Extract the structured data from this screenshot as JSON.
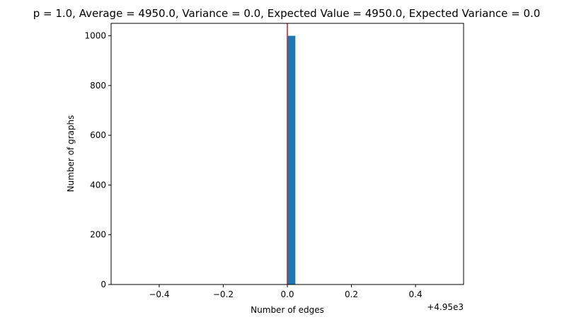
{
  "chart_data": {
    "type": "bar",
    "title": "p = 1.0, Average = 4950.0, Variance = 0.0, Expected Value = 4950.0, Expected Variance = 0.0",
    "xlabel": "Number of edges",
    "ylabel": "Number of graphs",
    "x_offset_label": "+4.95e3",
    "x_offset": 4950,
    "xlim": [
      4949.45,
      4950.55
    ],
    "ylim": [
      0,
      1050
    ],
    "x_ticks": [
      -0.4,
      -0.2,
      0.0,
      0.2,
      0.4
    ],
    "x_tick_labels": [
      "−0.4",
      "−0.2",
      "0.0",
      "0.2",
      "0.4"
    ],
    "y_ticks": [
      0,
      200,
      400,
      600,
      800,
      1000
    ],
    "y_tick_labels": [
      "0",
      "200",
      "400",
      "600",
      "800",
      "1000"
    ],
    "bins": [
      {
        "x0": 4950.0,
        "x1": 4950.025,
        "count": 1000
      }
    ],
    "reference_line": {
      "x": 4950.0,
      "color": "#d62728"
    },
    "bar_color": "#1f77b4",
    "grid": false
  }
}
